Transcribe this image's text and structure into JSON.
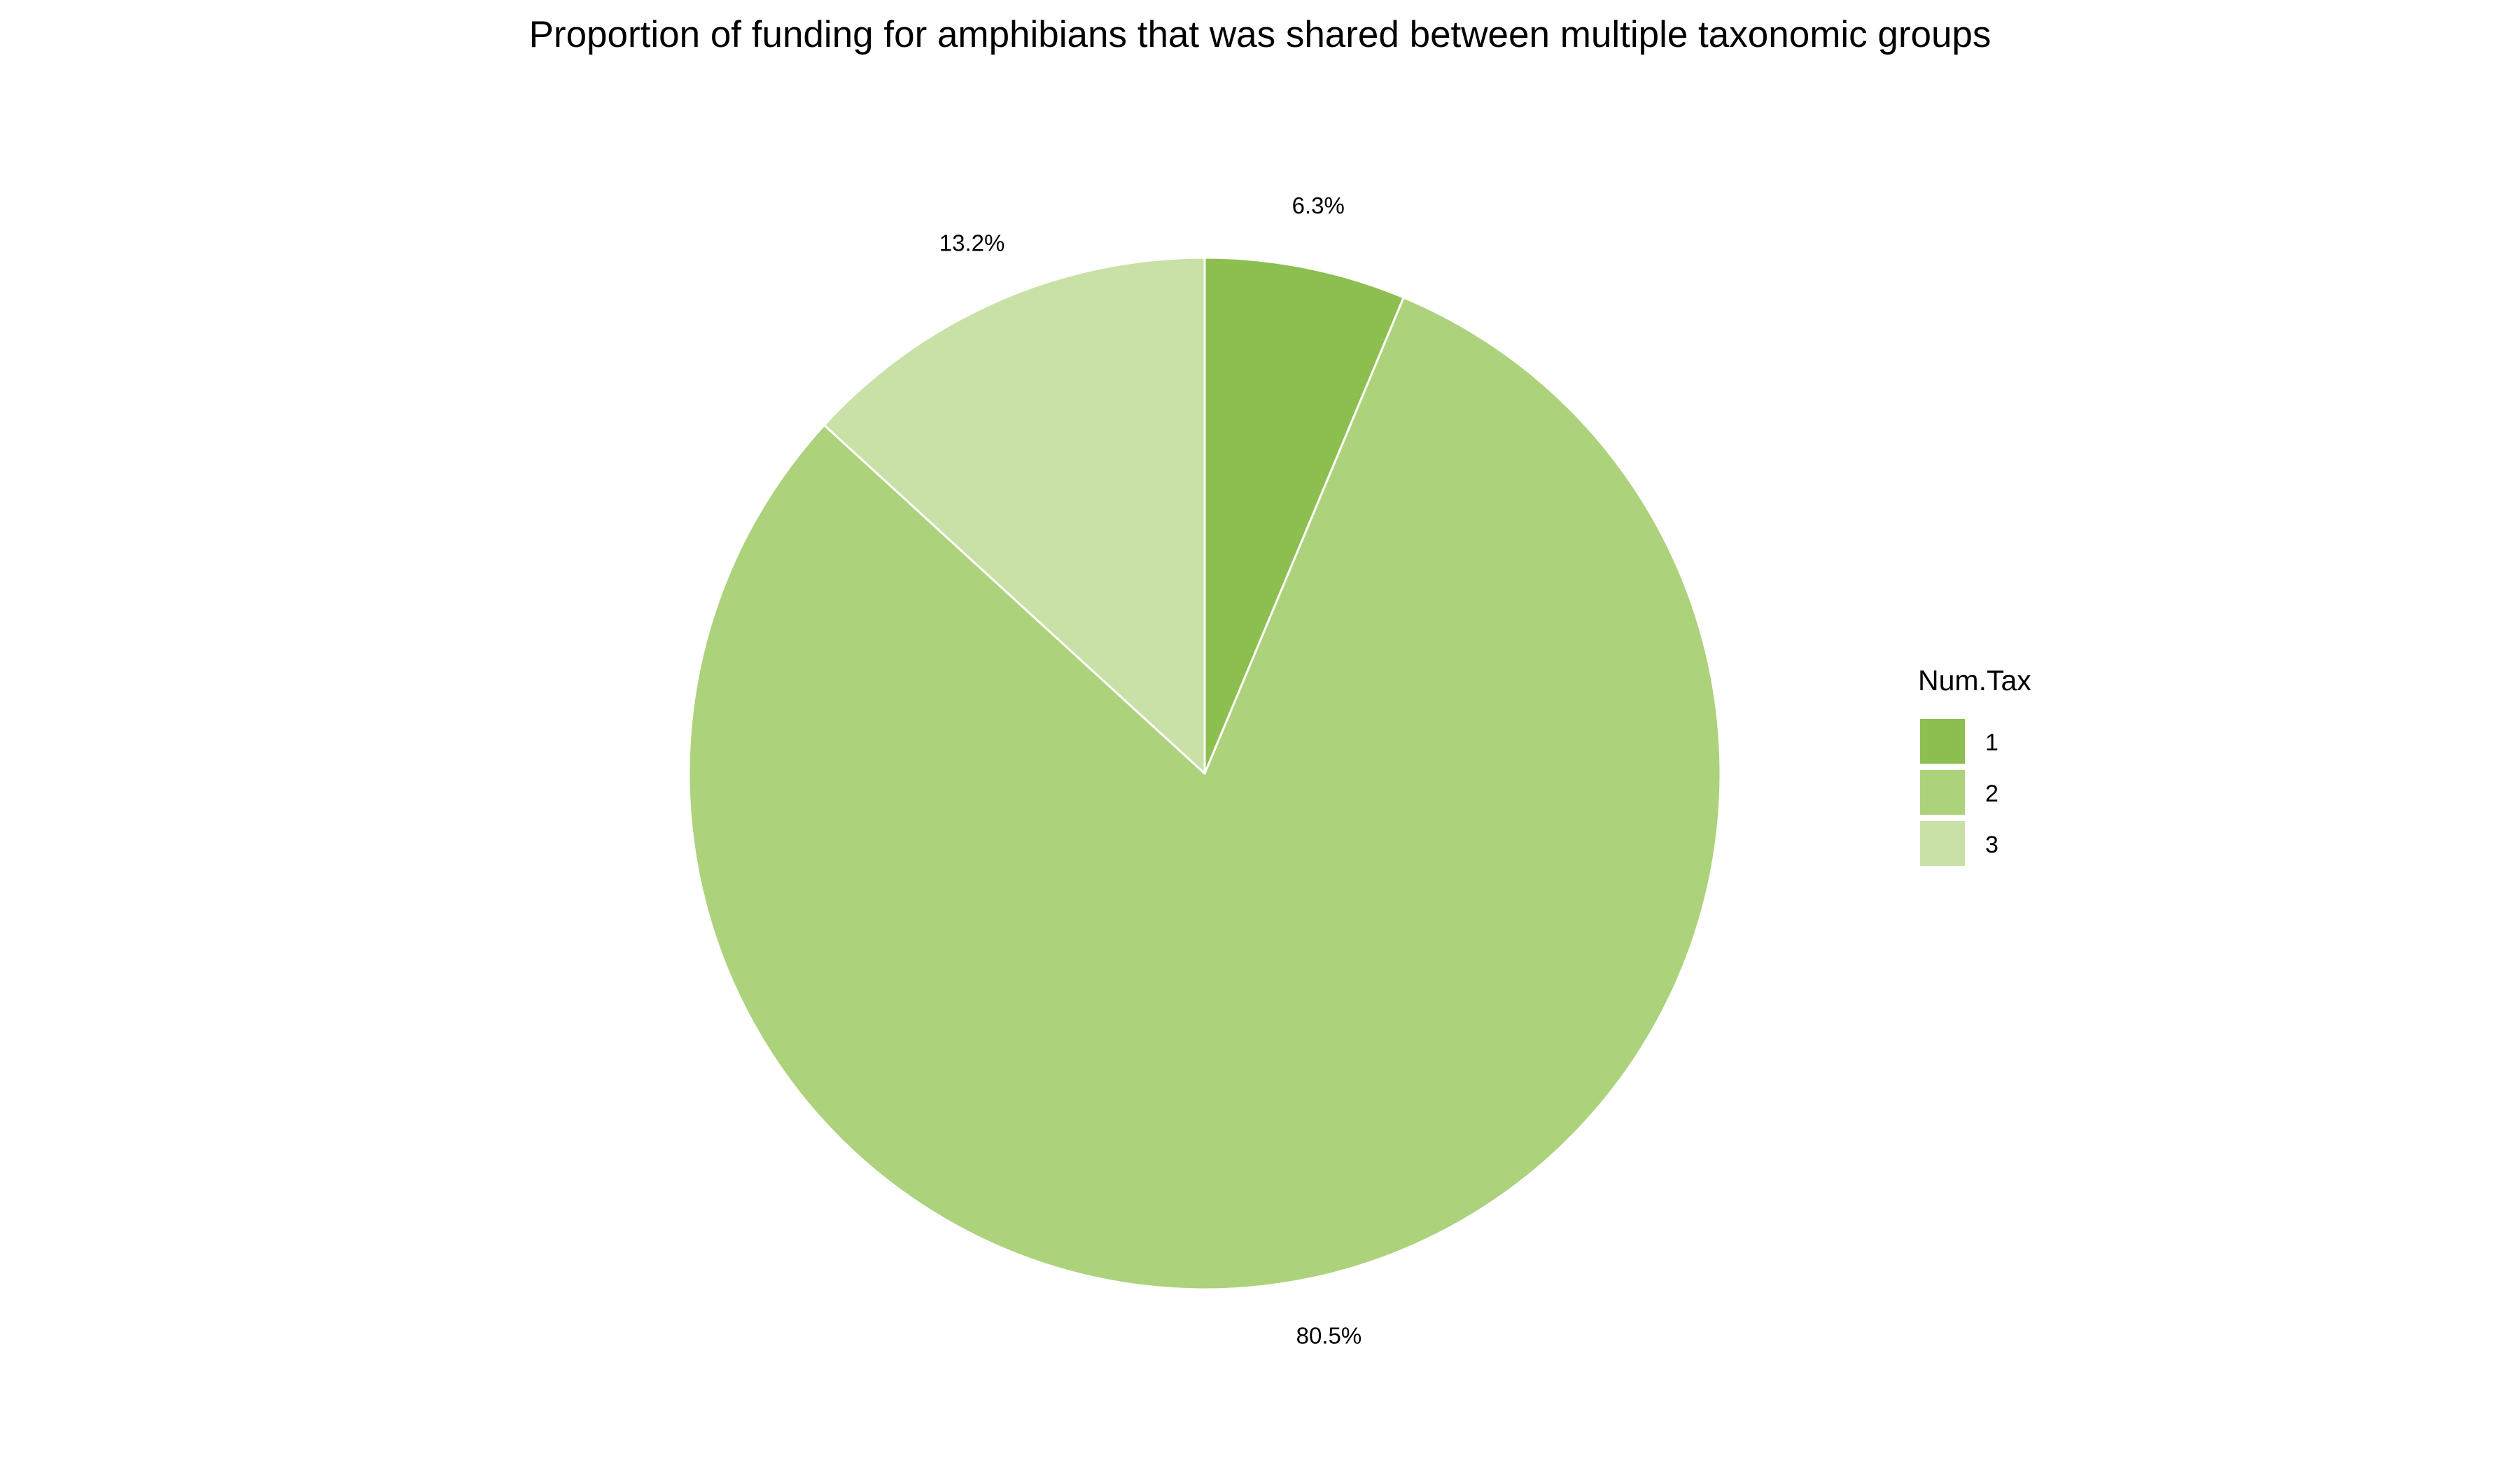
{
  "chart_data": {
    "type": "pie",
    "title": "Proportion of funding for amphibians that was shared between multiple taxonomic groups",
    "legend_title": "Num.Tax",
    "legend_position": "right",
    "slices": [
      {
        "category": "1",
        "value": 6.3,
        "label": "6.3%",
        "color": "#8cbf4f"
      },
      {
        "category": "2",
        "value": 80.5,
        "label": "80.5%",
        "color": "#add27c"
      },
      {
        "category": "3",
        "value": 13.2,
        "label": "13.2%",
        "color": "#c9e1a6"
      }
    ],
    "start": "12 o'clock",
    "direction": "clockwise",
    "slice_border_color": "#ffffff"
  }
}
